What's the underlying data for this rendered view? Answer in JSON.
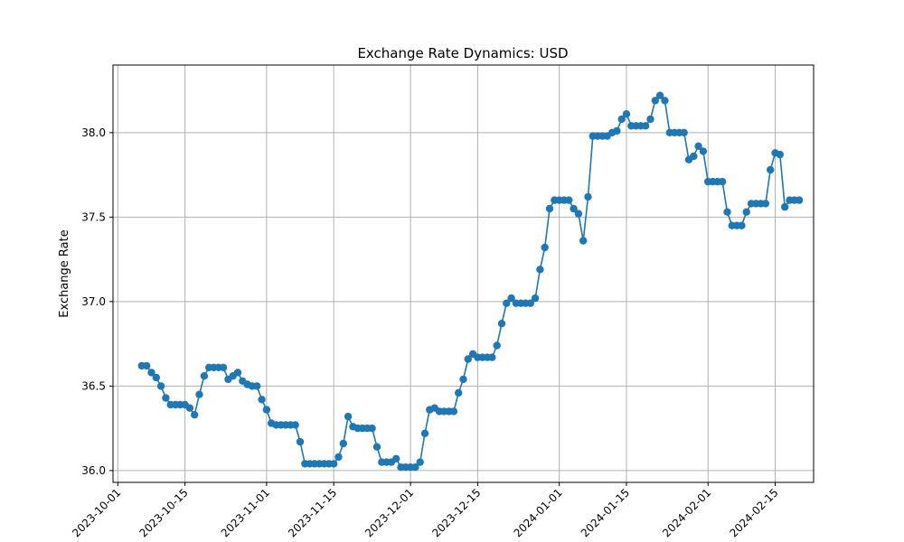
{
  "chart_data": {
    "type": "line",
    "title": "Exchange Rate Dynamics: USD",
    "xlabel": "",
    "ylabel": "Exchange Rate",
    "xlim": [
      "2023-09-30",
      "2024-02-23"
    ],
    "ylim": [
      35.93,
      38.4
    ],
    "grid": true,
    "x_ticks": [
      "2023-10-01",
      "2023-10-15",
      "2023-11-01",
      "2023-11-15",
      "2023-12-01",
      "2023-12-15",
      "2024-01-01",
      "2024-01-15",
      "2024-02-01",
      "2024-02-15"
    ],
    "y_ticks": [
      "36.0",
      "36.5",
      "37.0",
      "37.5",
      "38.0"
    ],
    "color": "#1f77b4",
    "series": [
      {
        "x": [
          "2023-10-06",
          "2023-10-07",
          "2023-10-08",
          "2023-10-09",
          "2023-10-10",
          "2023-10-11",
          "2023-10-12",
          "2023-10-13",
          "2023-10-14",
          "2023-10-15",
          "2023-10-16",
          "2023-10-17",
          "2023-10-18",
          "2023-10-19",
          "2023-10-20",
          "2023-10-21",
          "2023-10-22",
          "2023-10-23",
          "2023-10-24",
          "2023-10-25",
          "2023-10-26",
          "2023-10-27",
          "2023-10-28",
          "2023-10-29",
          "2023-10-30",
          "2023-10-31",
          "2023-11-01",
          "2023-11-02",
          "2023-11-03",
          "2023-11-04",
          "2023-11-05",
          "2023-11-06",
          "2023-11-07",
          "2023-11-08",
          "2023-11-09",
          "2023-11-10",
          "2023-11-11",
          "2023-11-12",
          "2023-11-13",
          "2023-11-14",
          "2023-11-15",
          "2023-11-16",
          "2023-11-17",
          "2023-11-18",
          "2023-11-19",
          "2023-11-20",
          "2023-11-21",
          "2023-11-22",
          "2023-11-23",
          "2023-11-24",
          "2023-11-25",
          "2023-11-26",
          "2023-11-27",
          "2023-11-28",
          "2023-11-29",
          "2023-11-30",
          "2023-12-01",
          "2023-12-02",
          "2023-12-03",
          "2023-12-04",
          "2023-12-05",
          "2023-12-06",
          "2023-12-07",
          "2023-12-08",
          "2023-12-09",
          "2023-12-10",
          "2023-12-11",
          "2023-12-12",
          "2023-12-13",
          "2023-12-14",
          "2023-12-15",
          "2023-12-16",
          "2023-12-17",
          "2023-12-18",
          "2023-12-19",
          "2023-12-20",
          "2023-12-21",
          "2023-12-22",
          "2023-12-23",
          "2023-12-24",
          "2023-12-25",
          "2023-12-26",
          "2023-12-27",
          "2023-12-28",
          "2023-12-29",
          "2023-12-30",
          "2023-12-31",
          "2024-01-01",
          "2024-01-02",
          "2024-01-03",
          "2024-01-04",
          "2024-01-05",
          "2024-01-06",
          "2024-01-07",
          "2024-01-08",
          "2024-01-09",
          "2024-01-10",
          "2024-01-11",
          "2024-01-12",
          "2024-01-13",
          "2024-01-14",
          "2024-01-15",
          "2024-01-16",
          "2024-01-17",
          "2024-01-18",
          "2024-01-19",
          "2024-01-20",
          "2024-01-21",
          "2024-01-22",
          "2024-01-23",
          "2024-01-24",
          "2024-01-25",
          "2024-01-26",
          "2024-01-27",
          "2024-01-28",
          "2024-01-29",
          "2024-01-30",
          "2024-01-31",
          "2024-02-01",
          "2024-02-02",
          "2024-02-03",
          "2024-02-04",
          "2024-02-05",
          "2024-02-06",
          "2024-02-07",
          "2024-02-08",
          "2024-02-09",
          "2024-02-10",
          "2024-02-11",
          "2024-02-12",
          "2024-02-13",
          "2024-02-14",
          "2024-02-15",
          "2024-02-16",
          "2024-02-17",
          "2024-02-18",
          "2024-02-19",
          "2024-02-20"
        ],
        "y": [
          36.62,
          36.62,
          36.58,
          36.55,
          36.5,
          36.43,
          36.39,
          36.39,
          36.39,
          36.39,
          36.37,
          36.33,
          36.45,
          36.56,
          36.61,
          36.61,
          36.61,
          36.61,
          36.54,
          36.56,
          36.58,
          36.53,
          36.51,
          36.5,
          36.5,
          36.42,
          36.36,
          36.28,
          36.27,
          36.27,
          36.27,
          36.27,
          36.27,
          36.17,
          36.04,
          36.04,
          36.04,
          36.04,
          36.04,
          36.04,
          36.04,
          36.08,
          36.16,
          36.32,
          36.26,
          36.25,
          36.25,
          36.25,
          36.25,
          36.14,
          36.05,
          36.05,
          36.05,
          36.07,
          36.02,
          36.02,
          36.02,
          36.02,
          36.05,
          36.22,
          36.36,
          36.37,
          36.35,
          36.35,
          36.35,
          36.35,
          36.46,
          36.54,
          36.66,
          36.69,
          36.67,
          36.67,
          36.67,
          36.67,
          36.74,
          36.87,
          36.99,
          37.02,
          36.99,
          36.99,
          36.99,
          36.99,
          37.02,
          37.19,
          37.32,
          37.55,
          37.6,
          37.6,
          37.6,
          37.6,
          37.55,
          37.52,
          37.36,
          37.62,
          37.98,
          37.98,
          37.98,
          37.98,
          38.0,
          38.01,
          38.08,
          38.11,
          38.04,
          38.04,
          38.04,
          38.04,
          38.08,
          38.19,
          38.22,
          38.19,
          38.0,
          38.0,
          38.0,
          38.0,
          37.84,
          37.86,
          37.92,
          37.89,
          37.71,
          37.71,
          37.71,
          37.71,
          37.53,
          37.45,
          37.45,
          37.45,
          37.53,
          37.58,
          37.58,
          37.58,
          37.58,
          37.78,
          37.88,
          37.87,
          37.56,
          37.6,
          37.6,
          37.6
        ]
      }
    ]
  }
}
